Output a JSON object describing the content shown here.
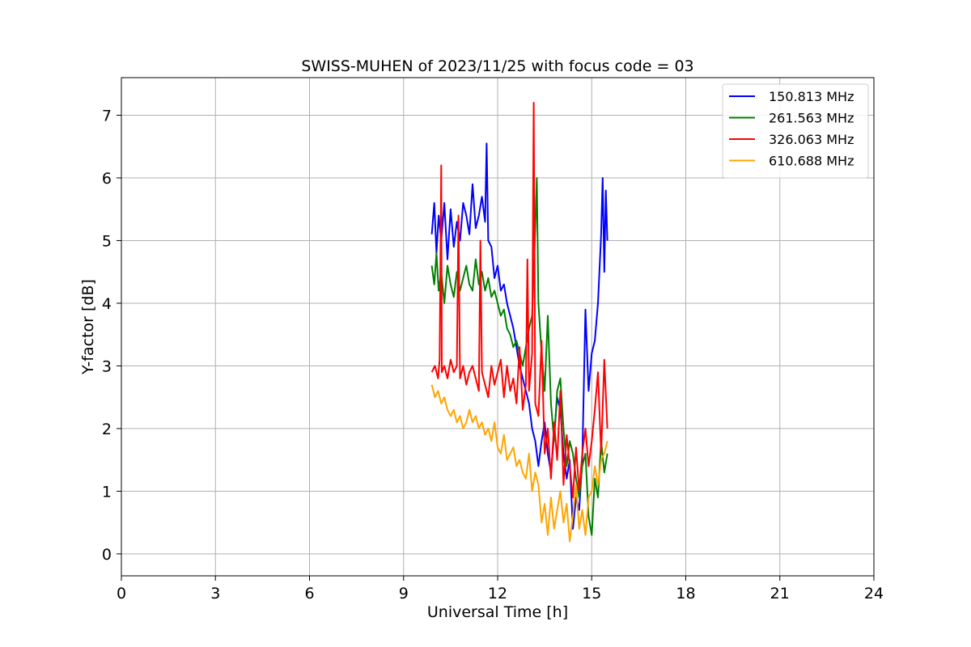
{
  "chart_data": {
    "type": "line",
    "title": "SWISS-MUHEN of 2023/11/25 with focus code = 03",
    "xlabel": "Universal Time [h]",
    "ylabel": "Y-factor [dB]",
    "xlim": [
      0,
      24
    ],
    "ylim": [
      -0.35,
      7.6
    ],
    "xticks": [
      0,
      3,
      6,
      9,
      12,
      15,
      18,
      21,
      24
    ],
    "yticks": [
      0,
      1,
      2,
      3,
      4,
      5,
      6,
      7
    ],
    "grid": true,
    "legend_position": "top-right",
    "series": [
      {
        "name": "150.813 MHz",
        "color": "#0000ff",
        "x": [
          9.9,
          9.98,
          10.05,
          10.12,
          10.2,
          10.3,
          10.4,
          10.5,
          10.6,
          10.7,
          10.8,
          10.9,
          11.0,
          11.1,
          11.2,
          11.3,
          11.4,
          11.5,
          11.6,
          11.65,
          11.7,
          11.8,
          11.9,
          12.0,
          12.1,
          12.2,
          12.3,
          12.4,
          12.5,
          12.6,
          12.7,
          12.8,
          12.9,
          13.0,
          13.1,
          13.2,
          13.3,
          13.4,
          13.5,
          13.6,
          13.7,
          13.8,
          13.9,
          14.0,
          14.1,
          14.2,
          14.3,
          14.4,
          14.5,
          14.6,
          14.7,
          14.8,
          14.9,
          15.0,
          15.1,
          15.2,
          15.3,
          15.35,
          15.4,
          15.45,
          15.5
        ],
        "y": [
          5.1,
          5.6,
          4.8,
          5.4,
          5.0,
          5.6,
          4.7,
          5.5,
          4.9,
          5.3,
          5.0,
          5.6,
          5.4,
          5.1,
          5.9,
          5.2,
          5.4,
          5.7,
          5.3,
          6.55,
          5.0,
          4.9,
          4.4,
          4.6,
          4.2,
          4.3,
          4.0,
          3.8,
          3.6,
          3.3,
          3.0,
          2.8,
          2.6,
          2.4,
          2.0,
          1.8,
          1.4,
          1.8,
          2.1,
          1.6,
          1.3,
          1.9,
          2.5,
          2.3,
          1.6,
          1.2,
          1.5,
          0.4,
          0.9,
          0.7,
          1.5,
          3.9,
          2.6,
          3.2,
          3.4,
          4.0,
          5.1,
          6.0,
          4.5,
          5.8,
          5.0
        ]
      },
      {
        "name": "261.563 MHz",
        "color": "#008000",
        "x": [
          9.9,
          9.98,
          10.05,
          10.12,
          10.2,
          10.3,
          10.4,
          10.5,
          10.6,
          10.7,
          10.8,
          10.9,
          11.0,
          11.1,
          11.2,
          11.3,
          11.4,
          11.5,
          11.6,
          11.7,
          11.8,
          11.9,
          12.0,
          12.1,
          12.2,
          12.3,
          12.4,
          12.5,
          12.6,
          12.7,
          12.8,
          12.9,
          13.0,
          13.1,
          13.2,
          13.25,
          13.3,
          13.4,
          13.5,
          13.6,
          13.7,
          13.8,
          13.9,
          14.0,
          14.1,
          14.2,
          14.3,
          14.4,
          14.5,
          14.6,
          14.7,
          14.8,
          14.9,
          15.0,
          15.1,
          15.2,
          15.3,
          15.4,
          15.5
        ],
        "y": [
          4.6,
          4.3,
          4.8,
          4.2,
          4.5,
          4.0,
          4.6,
          4.3,
          4.1,
          4.5,
          4.2,
          4.4,
          4.6,
          4.3,
          4.2,
          4.7,
          4.3,
          4.5,
          4.2,
          4.4,
          4.1,
          4.2,
          4.0,
          3.8,
          3.9,
          3.6,
          3.5,
          3.3,
          3.4,
          3.2,
          3.0,
          3.3,
          3.6,
          3.8,
          5.2,
          6.0,
          4.0,
          3.2,
          2.6,
          3.8,
          2.4,
          1.8,
          2.6,
          2.8,
          2.0,
          1.4,
          1.8,
          1.6,
          1.2,
          0.9,
          1.4,
          1.6,
          0.6,
          0.3,
          1.2,
          0.9,
          1.8,
          1.3,
          1.6
        ]
      },
      {
        "name": "326.063 MHz",
        "color": "#ff0000",
        "x": [
          9.9,
          10.0,
          10.1,
          10.15,
          10.2,
          10.22,
          10.3,
          10.4,
          10.5,
          10.6,
          10.7,
          10.75,
          10.8,
          10.9,
          11.0,
          11.1,
          11.2,
          11.3,
          11.4,
          11.45,
          11.5,
          11.6,
          11.7,
          11.8,
          11.9,
          12.0,
          12.1,
          12.2,
          12.3,
          12.4,
          12.5,
          12.6,
          12.7,
          12.8,
          12.9,
          12.95,
          13.0,
          13.1,
          13.15,
          13.2,
          13.3,
          13.4,
          13.5,
          13.6,
          13.7,
          13.8,
          13.9,
          14.0,
          14.1,
          14.2,
          14.3,
          14.4,
          14.5,
          14.6,
          14.7,
          14.8,
          14.9,
          15.0,
          15.1,
          15.2,
          15.3,
          15.4,
          15.5
        ],
        "y": [
          2.9,
          3.0,
          2.8,
          3.1,
          6.2,
          2.9,
          3.0,
          2.8,
          3.1,
          2.9,
          3.0,
          5.4,
          2.8,
          3.0,
          2.7,
          2.9,
          3.0,
          2.8,
          2.6,
          5.0,
          2.9,
          2.7,
          2.5,
          3.0,
          2.7,
          2.9,
          3.1,
          2.5,
          3.0,
          2.6,
          2.8,
          2.4,
          3.3,
          2.3,
          2.7,
          4.7,
          2.6,
          3.2,
          7.2,
          2.4,
          2.2,
          3.4,
          1.6,
          2.0,
          1.2,
          2.1,
          1.5,
          2.6,
          1.1,
          1.9,
          1.4,
          0.9,
          1.7,
          1.0,
          1.6,
          2.0,
          1.4,
          1.8,
          2.3,
          2.9,
          1.6,
          3.1,
          2.0
        ]
      },
      {
        "name": "610.688 MHz",
        "color": "#ffa500",
        "x": [
          9.9,
          10.0,
          10.1,
          10.2,
          10.3,
          10.4,
          10.5,
          10.6,
          10.7,
          10.8,
          10.9,
          11.0,
          11.1,
          11.2,
          11.3,
          11.4,
          11.5,
          11.6,
          11.7,
          11.8,
          11.9,
          12.0,
          12.1,
          12.2,
          12.3,
          12.4,
          12.5,
          12.6,
          12.7,
          12.8,
          12.9,
          13.0,
          13.1,
          13.2,
          13.3,
          13.4,
          13.5,
          13.6,
          13.7,
          13.8,
          13.9,
          14.0,
          14.1,
          14.2,
          14.3,
          14.4,
          14.5,
          14.6,
          14.7,
          14.8,
          14.9,
          15.0,
          15.1,
          15.2,
          15.3,
          15.4,
          15.5
        ],
        "y": [
          2.7,
          2.5,
          2.6,
          2.4,
          2.5,
          2.3,
          2.2,
          2.3,
          2.1,
          2.2,
          2.0,
          2.1,
          2.3,
          2.1,
          2.2,
          2.0,
          2.1,
          1.9,
          2.0,
          1.8,
          2.1,
          1.7,
          1.6,
          1.9,
          1.5,
          1.6,
          1.7,
          1.4,
          1.5,
          1.3,
          1.2,
          1.6,
          1.0,
          1.3,
          1.1,
          0.5,
          0.8,
          0.3,
          0.9,
          0.4,
          0.7,
          1.0,
          0.5,
          0.8,
          0.2,
          0.6,
          1.1,
          0.4,
          0.7,
          0.3,
          0.9,
          1.0,
          1.4,
          1.1,
          1.5,
          1.6,
          1.8
        ]
      }
    ]
  }
}
